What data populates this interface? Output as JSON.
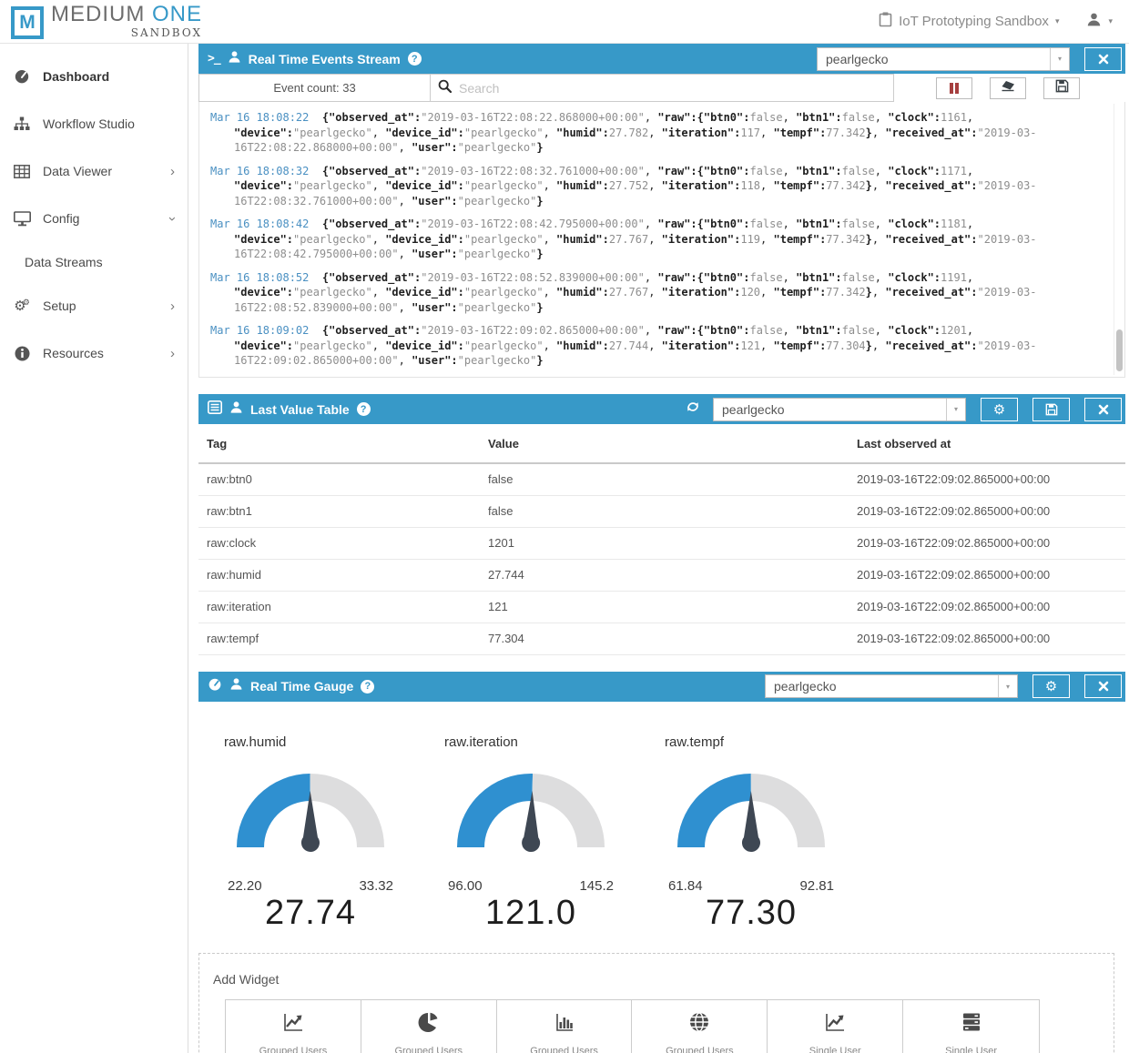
{
  "app": {
    "logo_letter": "M",
    "brand_medium": "MEDIUM",
    "brand_one": "ONE",
    "brand_sub": "SANDBOX",
    "sandbox_name": "IoT Prototyping Sandbox"
  },
  "icons": {
    "chevron_right": "›",
    "caret_down": "▾",
    "gear": "⚙",
    "terminal": ">_",
    "help": "?"
  },
  "colors": {
    "header_blue": "#3799C8",
    "gauge_blue": "#2F90D0",
    "gauge_gray": "#DDDDDE",
    "needle": "#3E4753",
    "pause_red": "#A63F3F",
    "timestamp_blue": "#4A90C2"
  },
  "sidebar": {
    "items": [
      {
        "label": "Dashboard"
      },
      {
        "label": "Workflow Studio"
      },
      {
        "label": "Data Viewer"
      },
      {
        "label": "Config"
      },
      {
        "label": "Data Streams"
      },
      {
        "label": "Setup"
      },
      {
        "label": "Resources"
      }
    ]
  },
  "events": {
    "title": "Real Time Events Stream",
    "device": "pearlgecko",
    "event_count": "Event count: 33",
    "search_placeholder": "Search",
    "entries": [
      {
        "time": "Mar 16 18:08:22",
        "observed_at": "2019-03-16T22:08:22.868000+00:00",
        "btn0": "false",
        "btn1": "false",
        "clock": "1161",
        "device": "pearlgecko",
        "device_id": "pearlgecko",
        "humid": "27.782",
        "iteration": "117",
        "tempf": "77.342",
        "received_at": "2019-03-16T22:08:22.868000+00:00",
        "user": "pearlgecko"
      },
      {
        "time": "Mar 16 18:08:32",
        "observed_at": "2019-03-16T22:08:32.761000+00:00",
        "btn0": "false",
        "btn1": "false",
        "clock": "1171",
        "device": "pearlgecko",
        "device_id": "pearlgecko",
        "humid": "27.752",
        "iteration": "118",
        "tempf": "77.342",
        "received_at": "2019-03-16T22:08:32.761000+00:00",
        "user": "pearlgecko"
      },
      {
        "time": "Mar 16 18:08:42",
        "observed_at": "2019-03-16T22:08:42.795000+00:00",
        "btn0": "false",
        "btn1": "false",
        "clock": "1181",
        "device": "pearlgecko",
        "device_id": "pearlgecko",
        "humid": "27.767",
        "iteration": "119",
        "tempf": "77.342",
        "received_at": "2019-03-16T22:08:42.795000+00:00",
        "user": "pearlgecko"
      },
      {
        "time": "Mar 16 18:08:52",
        "observed_at": "2019-03-16T22:08:52.839000+00:00",
        "btn0": "false",
        "btn1": "false",
        "clock": "1191",
        "device": "pearlgecko",
        "device_id": "pearlgecko",
        "humid": "27.767",
        "iteration": "120",
        "tempf": "77.342",
        "received_at": "2019-03-16T22:08:52.839000+00:00",
        "user": "pearlgecko"
      },
      {
        "time": "Mar 16 18:09:02",
        "observed_at": "2019-03-16T22:09:02.865000+00:00",
        "btn0": "false",
        "btn1": "false",
        "clock": "1201",
        "device": "pearlgecko",
        "device_id": "pearlgecko",
        "humid": "27.744",
        "iteration": "121",
        "tempf": "77.304",
        "received_at": "2019-03-16T22:09:02.865000+00:00",
        "user": "pearlgecko"
      }
    ]
  },
  "lvt": {
    "title": "Last Value Table",
    "device": "pearlgecko",
    "columns": [
      "Tag",
      "Value",
      "Last observed at"
    ],
    "rows": [
      [
        "raw:btn0",
        "false",
        "2019-03-16T22:09:02.865000+00:00"
      ],
      [
        "raw:btn1",
        "false",
        "2019-03-16T22:09:02.865000+00:00"
      ],
      [
        "raw:clock",
        "1201",
        "2019-03-16T22:09:02.865000+00:00"
      ],
      [
        "raw:humid",
        "27.744",
        "2019-03-16T22:09:02.865000+00:00"
      ],
      [
        "raw:iteration",
        "121",
        "2019-03-16T22:09:02.865000+00:00"
      ],
      [
        "raw:tempf",
        "77.304",
        "2019-03-16T22:09:02.865000+00:00"
      ]
    ]
  },
  "chart_data": {
    "type": "gauge",
    "title": "Real Time Gauge",
    "device": "pearlgecko",
    "gauges": [
      {
        "label": "raw.humid",
        "min": 22.2,
        "max": 33.32,
        "value": 27.74,
        "min_label": "22.20",
        "max_label": "33.32",
        "value_label": "27.74"
      },
      {
        "label": "raw.iteration",
        "min": 96.0,
        "max": 145.2,
        "value": 121.0,
        "min_label": "96.00",
        "max_label": "145.2",
        "value_label": "121.0"
      },
      {
        "label": "raw.tempf",
        "min": 61.84,
        "max": 92.81,
        "value": 77.3,
        "min_label": "61.84",
        "max_label": "92.81",
        "value_label": "77.30"
      }
    ]
  },
  "add_widget": {
    "title": "Add Widget",
    "buttons": [
      {
        "label": "Grouped Users",
        "icon": "line-chart-icon"
      },
      {
        "label": "Grouped Users",
        "icon": "pie-chart-icon"
      },
      {
        "label": "Grouped Users",
        "icon": "bar-chart-icon"
      },
      {
        "label": "Grouped Users",
        "icon": "globe-icon"
      },
      {
        "label": "Single User",
        "icon": "line-chart-icon"
      },
      {
        "label": "Single User",
        "icon": "server-icon"
      }
    ]
  }
}
